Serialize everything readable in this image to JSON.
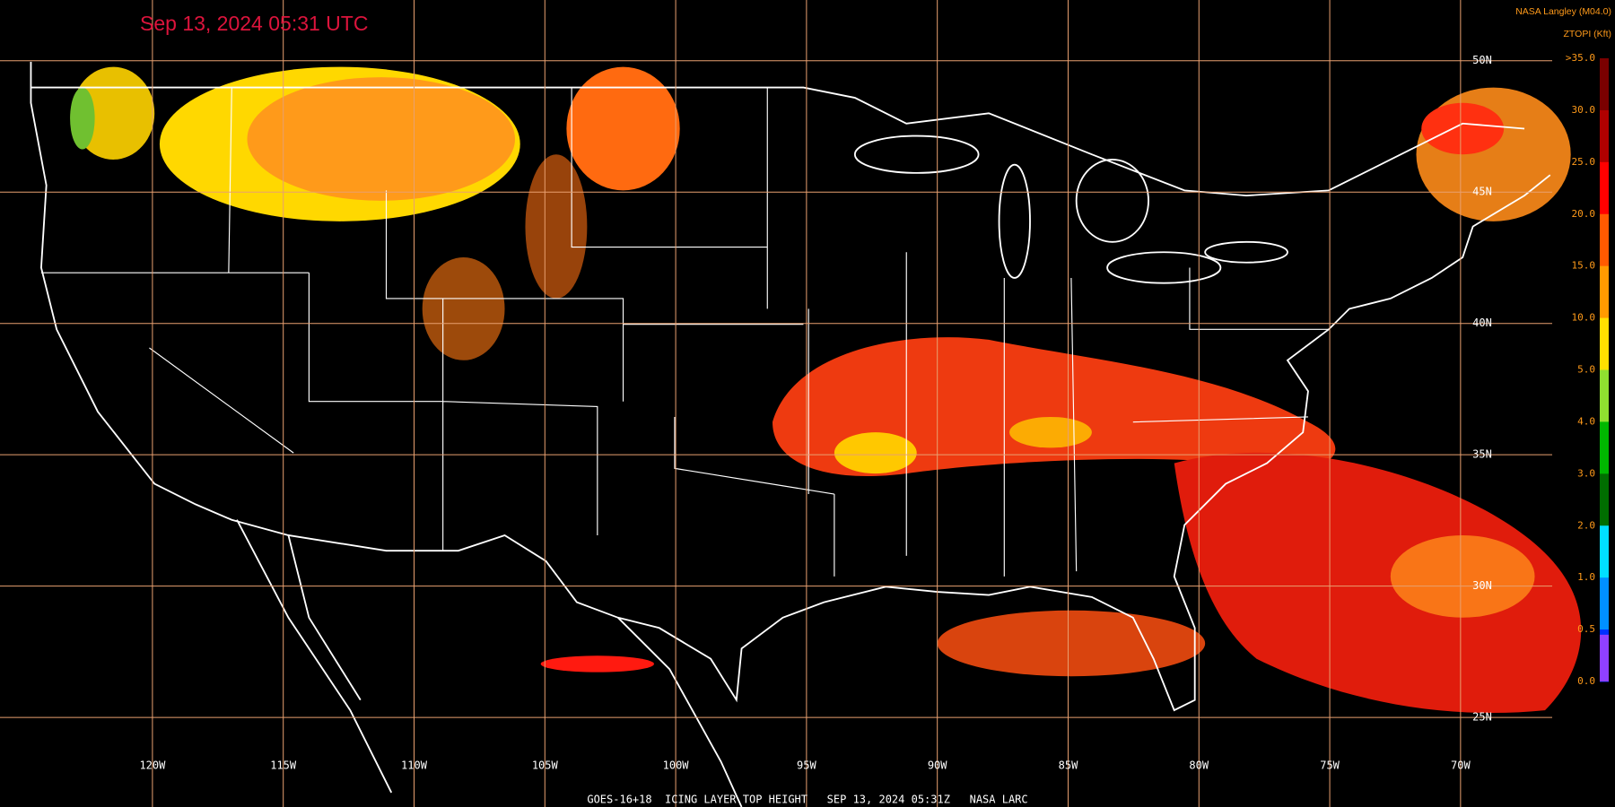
{
  "header": {
    "timestamp": "Sep 13, 2024 05:31 UTC",
    "source": "NASA Langley (M04.0)",
    "product": "ZTOPI (Kft)"
  },
  "legend": {
    "labels": [
      ">35.0",
      "30.0",
      "25.0",
      "20.0",
      "15.0",
      "10.0",
      "5.0",
      "4.0",
      "3.0",
      "2.0",
      "1.0",
      "0.5",
      "0.0"
    ]
  },
  "map": {
    "longitude_labels": [
      "120W",
      "115W",
      "110W",
      "105W",
      "100W",
      "95W",
      "90W",
      "85W",
      "80W",
      "75W",
      "70W"
    ],
    "latitude_labels": [
      "50N",
      "45N",
      "40N",
      "35N",
      "30N",
      "25N"
    ]
  },
  "footer": "GOES-16+18  ICING LAYER TOP HEIGHT   SEP 13, 2024 05:31Z   NASA LARC"
}
